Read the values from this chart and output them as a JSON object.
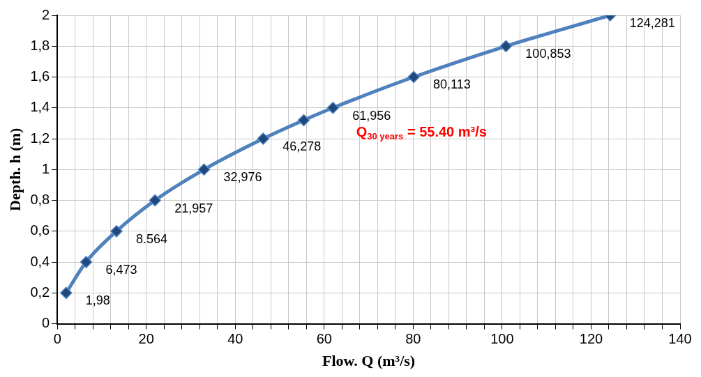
{
  "chart_data": {
    "type": "line",
    "xlabel": "Flow. Q (m³/s)",
    "ylabel": "Depth. h (m)",
    "x": [
      1.98,
      6.473,
      13.3,
      21.957,
      32.976,
      46.278,
      55.4,
      61.956,
      80.113,
      100.853,
      124.281
    ],
    "series": [
      {
        "color": "#4f81bd",
        "values": [
          0.2,
          0.4,
          0.6,
          0.8,
          1.0,
          1.2,
          1.32,
          1.4,
          1.6,
          1.8,
          2.0
        ]
      }
    ],
    "xlim": [
      0,
      140
    ],
    "xticks": [
      0,
      {
        "value": 4,
        "label": null
      },
      {
        "value": 8,
        "label": null
      },
      {
        "value": 12,
        "label": null
      },
      {
        "value": 16,
        "label": null
      },
      20,
      {
        "value": 24,
        "label": null
      },
      {
        "value": 28,
        "label": null
      },
      {
        "value": 32,
        "label": null
      },
      {
        "value": 36,
        "label": null
      },
      40,
      {
        "value": 44,
        "label": null
      },
      {
        "value": 48,
        "label": null
      },
      {
        "value": 52,
        "label": null
      },
      {
        "value": 56,
        "label": null
      },
      60,
      {
        "value": 64,
        "label": null
      },
      {
        "value": 68,
        "label": null
      },
      {
        "value": 72,
        "label": null
      },
      {
        "value": 76,
        "label": null
      },
      80,
      {
        "value": 84,
        "label": null
      },
      {
        "value": 88,
        "label": null
      },
      {
        "value": 92,
        "label": null
      },
      {
        "value": 96,
        "label": null
      },
      100,
      {
        "value": 104,
        "label": null
      },
      {
        "value": 108,
        "label": null
      },
      {
        "value": 112,
        "label": null
      },
      {
        "value": 116,
        "label": null
      },
      120,
      {
        "value": 124,
        "label": null
      },
      {
        "value": 128,
        "label": null
      },
      {
        "value": 132,
        "label": null
      },
      {
        "value": 136,
        "label": null
      },
      140
    ],
    "ylim": [
      0,
      2
    ],
    "yticks": [
      0,
      {
        "value": 0.2,
        "label": "0,2"
      },
      {
        "value": 0.4,
        "label": "0,4"
      },
      {
        "value": 0.6,
        "label": "0,6"
      },
      {
        "value": 0.8,
        "label": "0,8"
      },
      1,
      {
        "value": 1.2,
        "label": "1,2"
      },
      {
        "value": 1.4,
        "label": "1,4"
      },
      {
        "value": 1.6,
        "label": "1,6"
      },
      {
        "value": 1.8,
        "label": "1,8"
      },
      2
    ],
    "grid": true,
    "legend": false,
    "marker": "diamond",
    "line_style": "solid",
    "annotations": [
      {
        "text": "1,98",
        "x": 1.98,
        "y": 0.2
      },
      {
        "text": "6,473",
        "x": 6.473,
        "y": 0.4
      },
      {
        "text": "8.564",
        "x": 13.3,
        "y": 0.6
      },
      {
        "text": "21,957",
        "x": 21.957,
        "y": 0.8
      },
      {
        "text": "32,976",
        "x": 32.976,
        "y": 1.0
      },
      {
        "text": "46,278",
        "x": 46.278,
        "y": 1.2
      },
      "Q$_{30 years}$ = 55.40 m³/s",
      {
        "text": "61,956",
        "x": 61.956,
        "y": 1.4
      },
      {
        "text": "80,113",
        "x": 80.113,
        "y": 1.6
      },
      {
        "text": "100,853",
        "x": 100.853,
        "y": 1.8
      },
      {
        "text": "124,281",
        "x": 124.281,
        "y": 2.0
      }
    ]
  }
}
